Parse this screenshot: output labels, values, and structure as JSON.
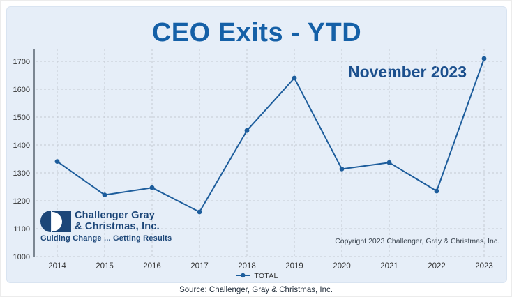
{
  "title": "CEO Exits - YTD",
  "subtitle": "November 2023",
  "copyright": "Copyright 2023 Challenger, Gray & Christmas, Inc.",
  "source": "Source: Challenger, Gray & Christmas, Inc.",
  "legend": {
    "label": "TOTAL"
  },
  "logo": {
    "line1": "Challenger Gray",
    "line2": "& Christmas, Inc.",
    "tagline": "Guiding Change ... Getting Results"
  },
  "colors": {
    "panel_bg": "#e6eef8",
    "title_color": "#1560a7",
    "subtitle_color": "#1b4f8d",
    "line_color": "#1d5d9c",
    "navy": "#1c4678",
    "grid_color": "#c4c9d2",
    "axis_color": "#4f5b66",
    "tick_color": "#333333"
  },
  "chart_data": {
    "type": "line",
    "title": "CEO Exits - YTD",
    "subtitle": "November 2023",
    "categories": [
      "2014",
      "2015",
      "2016",
      "2017",
      "2018",
      "2019",
      "2020",
      "2021",
      "2022",
      "2023"
    ],
    "series": [
      {
        "name": "TOTAL",
        "values": [
          1341,
          1221,
          1247,
          1160,
          1452,
          1640,
          1314,
          1337,
          1235,
          1710
        ]
      }
    ],
    "xlabel": "",
    "ylabel": "",
    "ylim": [
      1000,
      1700
    ],
    "ytick_step": 100,
    "grid": true,
    "grid_style": "dashed",
    "legend_position": "bottom"
  }
}
